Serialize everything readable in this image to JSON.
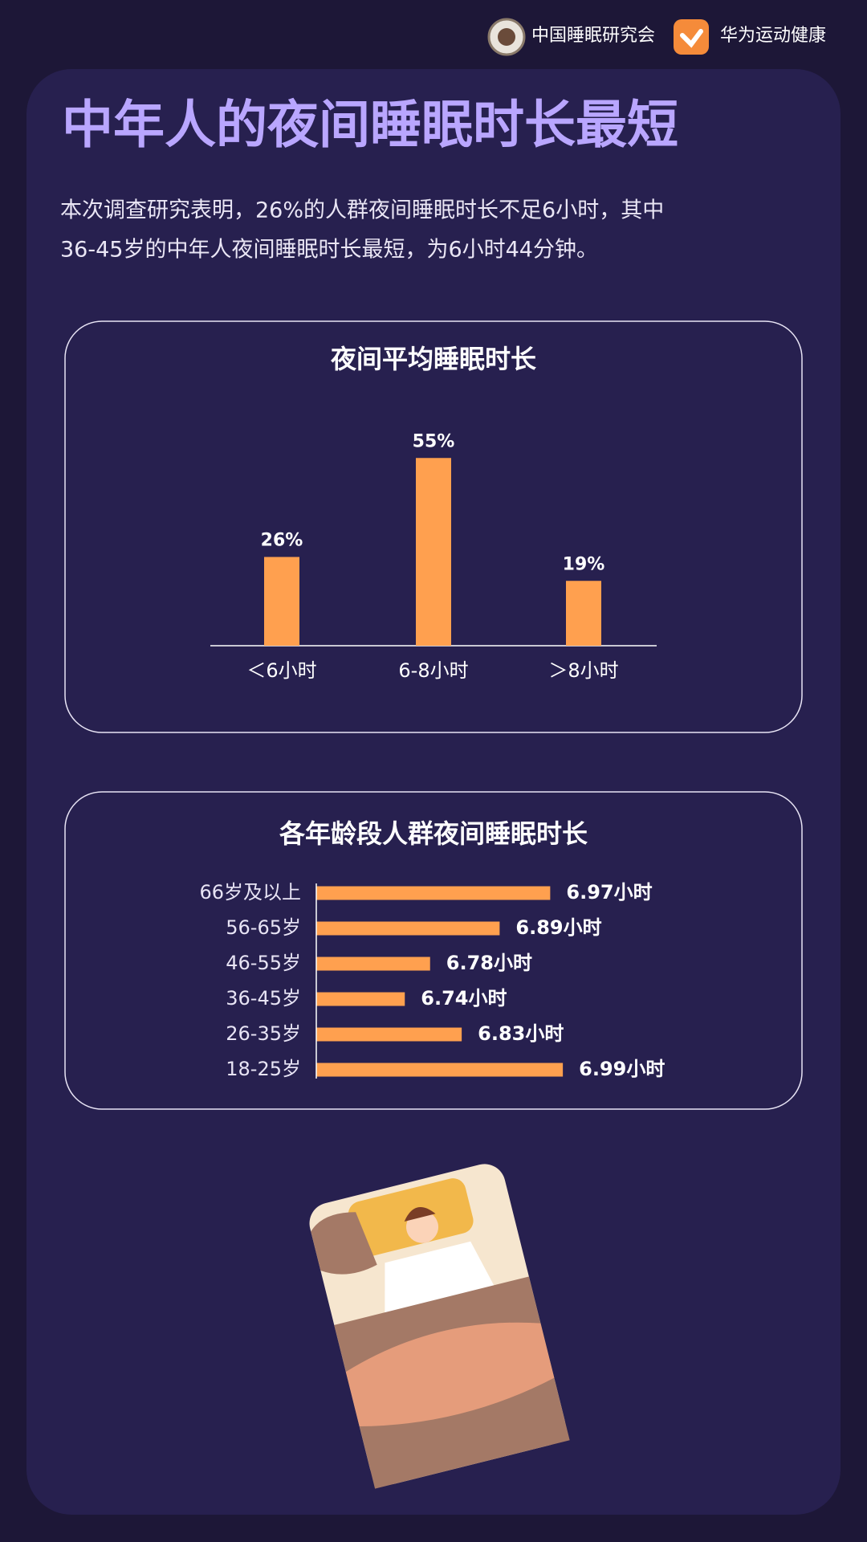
{
  "header": {
    "logos": [
      "中国睡眠研究会",
      "华为运动健康"
    ]
  },
  "title": "中年人的夜间睡眠时长最短",
  "body": [
    "本次调查研究表明，26%的人群夜间睡眠时长不足6小时，其中",
    "36-45岁的中年人夜间睡眠时长最短，为6小时44分钟。"
  ],
  "chart_data": [
    {
      "type": "bar",
      "title": "夜间平均睡眠时长",
      "categories": [
        "＜6小时",
        "6-8小时",
        "＞8小时"
      ],
      "values": [
        26,
        55,
        19
      ],
      "value_labels": [
        "26%",
        "55%",
        "19%"
      ],
      "color": "#ffa04f"
    },
    {
      "type": "hbar",
      "title": "各年龄段人群夜间睡眠时长",
      "categories": [
        "66岁及以上",
        "56-65岁",
        "46-55岁",
        "36-45岁",
        "26-35岁",
        "18-25岁"
      ],
      "values": [
        6.97,
        6.89,
        6.78,
        6.74,
        6.83,
        6.99
      ],
      "value_labels": [
        "6.97小时",
        "6.89小时",
        "6.78小时",
        "6.74小时",
        "6.83小时",
        "6.99小时"
      ],
      "xlim": [
        6.6,
        7.0
      ],
      "color": "#ffa04f"
    }
  ]
}
